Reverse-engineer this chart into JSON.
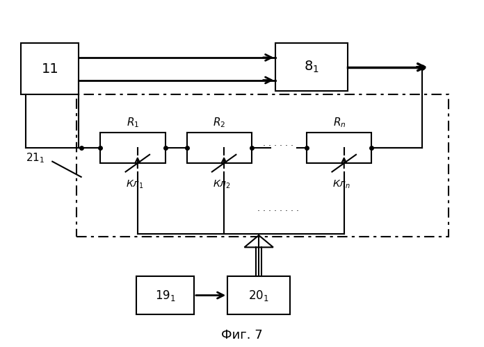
{
  "fig_width": 6.96,
  "fig_height": 5.0,
  "dpi": 100,
  "bg_color": "#ffffff",
  "title": "Фиг. 7",
  "title_fontsize": 13,
  "line_color": "#000000"
}
